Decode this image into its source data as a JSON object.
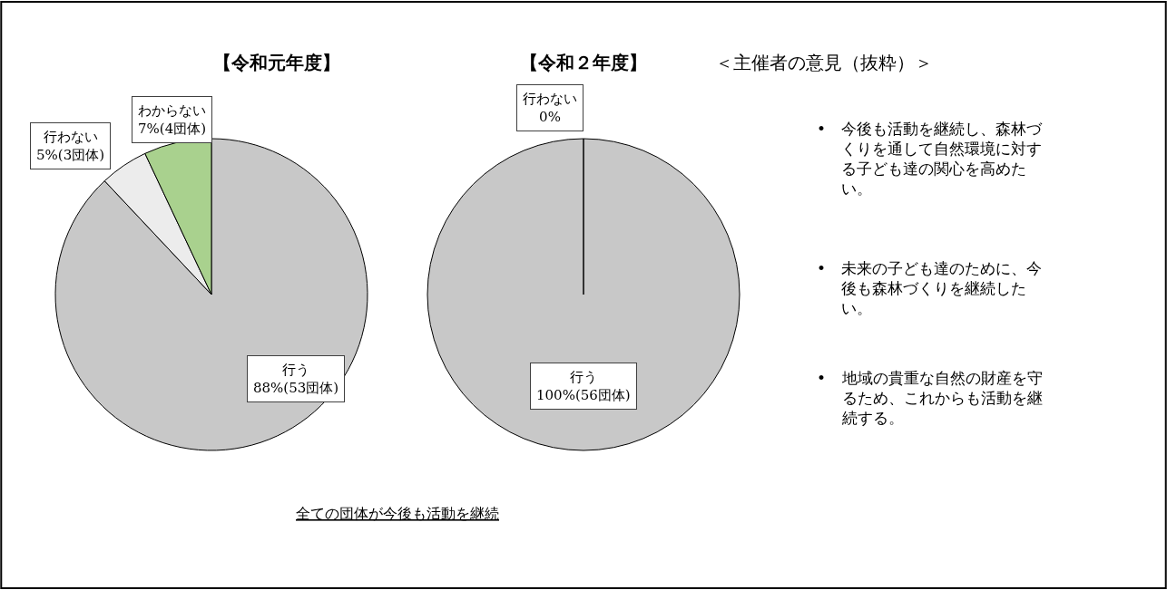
{
  "chart_data": [
    {
      "type": "pie",
      "title": "【令和元年度】",
      "categories": [
        "行う",
        "行わない",
        "わからない"
      ],
      "values": [
        88,
        5,
        7
      ],
      "value_labels": [
        "88%(53団体)",
        "5%(3団体)",
        "7%(4団体)"
      ],
      "colors": [
        "#c8c8c8",
        "#ececec",
        "#a9d18e"
      ],
      "annotations": [
        "全ての団体が今後も活動を継続"
      ]
    },
    {
      "type": "pie",
      "title": "【令和２年度】",
      "categories": [
        "行う",
        "行わない"
      ],
      "values": [
        100,
        0
      ],
      "value_labels": [
        "100%(56団体)",
        "0%"
      ],
      "colors": [
        "#c8c8c8",
        "#ececec"
      ]
    },
    {
      "type": "other",
      "title": "＜主催者の意見（抜粋）＞",
      "annotations": [
        "• 今後も活動を継続し、森林づくりを通して自然環境に対する子ども達の関心を高めたい。",
        "• 未来の子ども達のために、今後も森林づくりを継続したい。",
        "• 地域の貴重な自然の財産を守るため、これからも活動を継続する。"
      ]
    }
  ]
}
